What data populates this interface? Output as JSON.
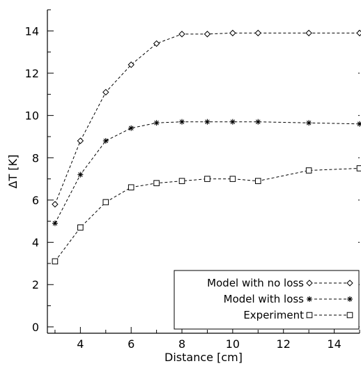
{
  "chart_data": {
    "type": "line",
    "title": "",
    "xlabel": "Distance [cm]",
    "ylabel": "ΔT [K]",
    "xlim": [
      2.7,
      15.0
    ],
    "ylim": [
      -0.3,
      15.0
    ],
    "xticks": [
      4,
      6,
      8,
      10,
      12,
      14
    ],
    "yticks": [
      0,
      2,
      4,
      6,
      8,
      10,
      12,
      14
    ],
    "grid": false,
    "legend_position": "bottom-right",
    "series": [
      {
        "name": "Model with no loss",
        "marker": "diamond",
        "line_style": "dashed",
        "x": [
          3,
          4,
          5,
          6,
          7,
          8,
          9,
          10,
          11,
          13,
          15
        ],
        "y": [
          5.8,
          8.8,
          11.1,
          12.4,
          13.4,
          13.85,
          13.85,
          13.9,
          13.9,
          13.9,
          13.9
        ]
      },
      {
        "name": "Model with loss",
        "marker": "asterisk",
        "line_style": "dashed",
        "x": [
          3,
          4,
          5,
          6,
          7,
          8,
          9,
          10,
          11,
          13,
          15
        ],
        "y": [
          4.9,
          7.2,
          8.8,
          9.4,
          9.65,
          9.7,
          9.7,
          9.7,
          9.7,
          9.65,
          9.6
        ]
      },
      {
        "name": "Experiment",
        "marker": "square",
        "line_style": "dashed",
        "x": [
          3,
          4,
          5,
          6,
          7,
          8,
          9,
          10,
          11,
          13,
          15
        ],
        "y": [
          3.1,
          4.7,
          5.9,
          6.6,
          6.8,
          6.9,
          7.0,
          7.0,
          6.9,
          7.4,
          7.5
        ]
      }
    ]
  }
}
